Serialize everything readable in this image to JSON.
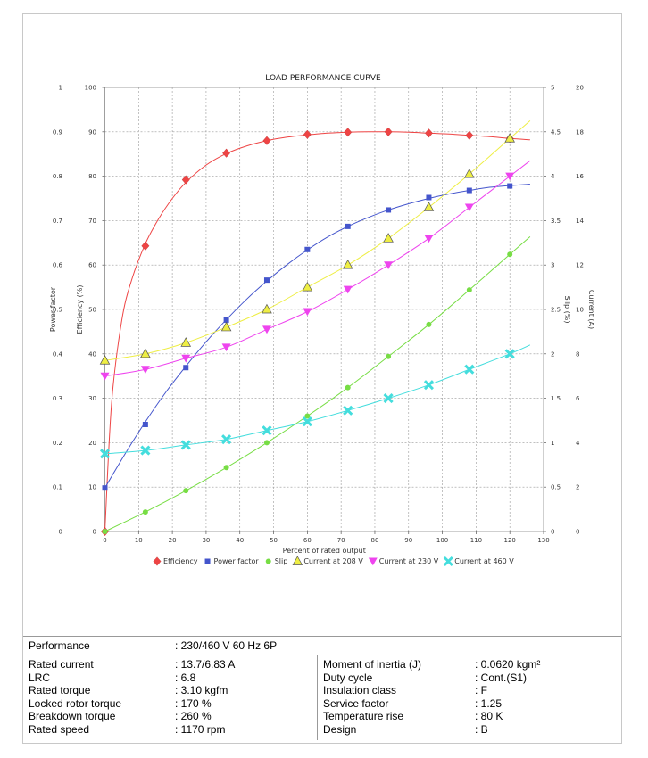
{
  "chart_data": {
    "type": "line",
    "title": "LOAD PERFORMANCE CURVE",
    "xlabel": "Percent of rated output",
    "x_ticks": [
      0,
      10,
      20,
      30,
      40,
      50,
      60,
      70,
      80,
      90,
      100,
      110,
      120,
      130
    ],
    "xlim": [
      0,
      130
    ],
    "grid": true,
    "legend_position": "bottom",
    "axes": {
      "power_factor": {
        "label": "Power factor",
        "range": [
          0,
          1
        ],
        "ticks": [
          "0",
          "0.1",
          "0.2",
          "0.3",
          "0.4",
          "0.5",
          "0.6",
          "0.7",
          "0.8",
          "0.9",
          "1"
        ]
      },
      "efficiency": {
        "label": "Efficiency (%)",
        "range": [
          0,
          100
        ],
        "ticks": [
          "0",
          "10",
          "20",
          "30",
          "40",
          "50",
          "60",
          "70",
          "80",
          "90",
          "100"
        ]
      },
      "slip": {
        "label": "Slip (%)",
        "range": [
          0,
          5
        ],
        "ticks": [
          "0",
          "0.5",
          "1",
          "1.5",
          "2",
          "2.5",
          "3",
          "3.5",
          "4",
          "4.5",
          "5"
        ]
      },
      "current": {
        "label": "Current (A)",
        "range": [
          0,
          20
        ],
        "ticks": [
          "0",
          "2",
          "4",
          "6",
          "8",
          "10",
          "12",
          "14",
          "16",
          "18",
          "20"
        ]
      }
    },
    "series": [
      {
        "name": "Efficiency",
        "axis": "efficiency",
        "color": "#ee4444",
        "marker": "diamond",
        "x": [
          0,
          12,
          24,
          36,
          48,
          60,
          72,
          84,
          96,
          108,
          120
        ],
        "y": [
          0,
          64.3,
          79.2,
          85.2,
          88.0,
          89.4,
          89.9,
          90.0,
          89.7,
          89.2,
          88.5
        ],
        "curve_x": [
          0,
          2,
          5,
          8,
          12,
          16,
          20,
          24,
          30,
          36,
          42,
          48,
          54,
          60,
          66,
          72,
          78,
          84,
          90,
          96,
          102,
          108,
          114,
          120,
          126
        ],
        "curve_y": [
          0,
          29.0,
          47.5,
          56.8,
          64.8,
          70.5,
          75.0,
          78.6,
          82.5,
          85.1,
          86.8,
          88.0,
          88.8,
          89.3,
          89.7,
          89.9,
          90.0,
          90.0,
          89.9,
          89.7,
          89.5,
          89.2,
          88.9,
          88.5,
          88.2
        ]
      },
      {
        "name": "Power factor",
        "axis": "power_factor",
        "color": "#4455cc",
        "marker": "square",
        "x": [
          0,
          12,
          24,
          36,
          48,
          60,
          72,
          84,
          96,
          108,
          120
        ],
        "y": [
          0.098,
          0.241,
          0.369,
          0.476,
          0.566,
          0.635,
          0.687,
          0.724,
          0.752,
          0.768,
          0.778
        ],
        "curve_x": [
          0,
          6,
          12,
          18,
          24,
          30,
          36,
          42,
          48,
          54,
          60,
          66,
          72,
          78,
          84,
          90,
          96,
          102,
          108,
          114,
          120,
          126
        ],
        "curve_y": [
          0.098,
          0.175,
          0.247,
          0.313,
          0.372,
          0.427,
          0.477,
          0.523,
          0.564,
          0.601,
          0.634,
          0.663,
          0.687,
          0.707,
          0.724,
          0.738,
          0.75,
          0.76,
          0.768,
          0.775,
          0.779,
          0.782
        ]
      },
      {
        "name": "Slip",
        "axis": "slip",
        "color": "#77dd44",
        "marker": "circle",
        "x": [
          0,
          12,
          24,
          36,
          48,
          60,
          72,
          84,
          96,
          108,
          120
        ],
        "y": [
          0,
          0.22,
          0.46,
          0.72,
          1.0,
          1.3,
          1.62,
          1.97,
          2.33,
          2.72,
          3.12
        ],
        "curve_x": [
          0,
          12,
          24,
          36,
          48,
          60,
          72,
          84,
          96,
          108,
          120,
          126
        ],
        "curve_y": [
          0,
          0.22,
          0.46,
          0.72,
          1.0,
          1.3,
          1.62,
          1.97,
          2.33,
          2.72,
          3.12,
          3.32
        ]
      },
      {
        "name": "Current at 208 V",
        "axis": "current",
        "color": "#eeee44",
        "marker": "triangle",
        "x": [
          0,
          12,
          24,
          36,
          48,
          60,
          72,
          84,
          96,
          108,
          120
        ],
        "y": [
          7.7,
          8.0,
          8.5,
          9.2,
          10.0,
          11.0,
          12.0,
          13.2,
          14.6,
          16.1,
          17.7
        ],
        "curve_x": [
          0,
          12,
          24,
          36,
          48,
          60,
          72,
          84,
          96,
          108,
          120,
          126
        ],
        "curve_y": [
          7.7,
          8.0,
          8.5,
          9.2,
          10.0,
          11.0,
          12.0,
          13.2,
          14.6,
          16.1,
          17.7,
          18.5
        ]
      },
      {
        "name": "Current at 230 V",
        "axis": "current",
        "color": "#ee44ee",
        "marker": "triangle-down",
        "x": [
          0,
          12,
          24,
          36,
          48,
          60,
          72,
          84,
          96,
          108,
          120
        ],
        "y": [
          7.0,
          7.3,
          7.8,
          8.3,
          9.1,
          9.9,
          10.9,
          12.0,
          13.2,
          14.6,
          16.0
        ],
        "curve_x": [
          0,
          12,
          24,
          36,
          48,
          60,
          72,
          84,
          96,
          108,
          120,
          126
        ],
        "curve_y": [
          7.0,
          7.3,
          7.8,
          8.3,
          9.1,
          9.9,
          10.9,
          12.0,
          13.2,
          14.6,
          16.0,
          16.7
        ]
      },
      {
        "name": "Current at 460 V",
        "axis": "current",
        "color": "#44dddd",
        "marker": "x",
        "x": [
          0,
          12,
          24,
          36,
          48,
          60,
          72,
          84,
          96,
          108,
          120
        ],
        "y": [
          3.5,
          3.65,
          3.9,
          4.15,
          4.55,
          4.95,
          5.45,
          6.0,
          6.6,
          7.3,
          8.0
        ],
        "curve_x": [
          0,
          12,
          24,
          36,
          48,
          60,
          72,
          84,
          96,
          108,
          120,
          126
        ],
        "curve_y": [
          3.5,
          3.65,
          3.9,
          4.15,
          4.55,
          4.95,
          5.45,
          6.0,
          6.6,
          7.3,
          8.0,
          8.4
        ]
      }
    ]
  },
  "specs": {
    "performance": {
      "label": "Performance",
      "value": ": 230/460 V 60 Hz 6P"
    },
    "left": [
      {
        "label": "Rated current",
        "value": ": 13.7/6.83 A"
      },
      {
        "label": "LRC",
        "value": ": 6.8"
      },
      {
        "label": "Rated torque",
        "value": ": 3.10 kgfm"
      },
      {
        "label": "Locked rotor torque",
        "value": ": 170 %"
      },
      {
        "label": "Breakdown torque",
        "value": ": 260 %"
      },
      {
        "label": "Rated speed",
        "value": ": 1170 rpm"
      }
    ],
    "right": [
      {
        "label": "Moment of inertia (J)",
        "value": ": 0.0620 kgm²"
      },
      {
        "label": "Duty cycle",
        "value": ": Cont.(S1)"
      },
      {
        "label": "Insulation class",
        "value": ": F"
      },
      {
        "label": "Service factor",
        "value": ": 1.25"
      },
      {
        "label": "Temperature rise",
        "value": ": 80 K"
      },
      {
        "label": "Design",
        "value": ": B"
      }
    ]
  }
}
